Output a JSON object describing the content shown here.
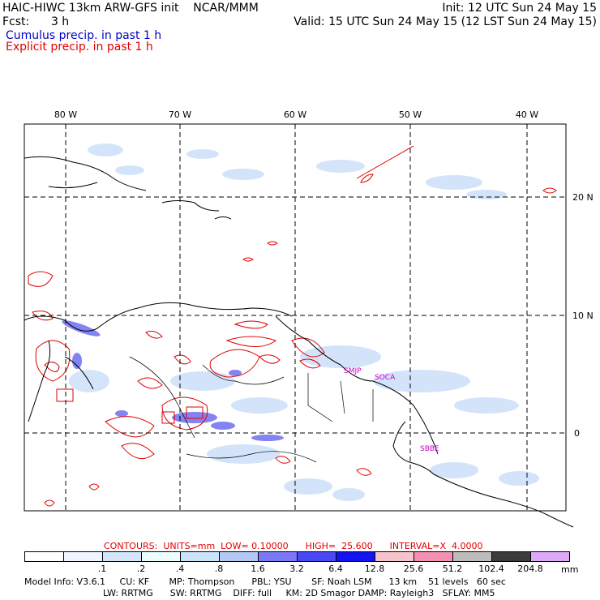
{
  "header": {
    "title_left": "HAIC-HIWC 13km ARW-GFS init    NCAR/MMM",
    "fcst_label": "Fcst:      3 h",
    "init_time": "Init: 12 UTC Sun 24 May 15",
    "valid_time": "Valid: 15 UTC Sun 24 May 15 (12 LST Sun 24 May 15)",
    "legend_cumulus": "Cumulus precip. in past 1 h",
    "legend_explicit": "Explicit precip. in past 1 h"
  },
  "map": {
    "lon_labels": [
      "80 W",
      "70 W",
      "60 W",
      "50 W",
      "40 W"
    ],
    "lat_labels": [
      "20 N",
      "10 N",
      "0"
    ],
    "stations": [
      "SMJP",
      "SOCA",
      "SBBE"
    ],
    "colors": {
      "cumulus": "#3a3aff",
      "explicit": "#e00000",
      "station": "#cc00cc"
    }
  },
  "contours": {
    "label": "CONTOURS:  UNITS=mm  LOW= 0.10000      HIGH=  25.600      INTERVAL=X  4.0000"
  },
  "colorbar": {
    "labels": [
      ".1",
      ".2",
      ".4",
      ".8",
      "1.6",
      "3.2",
      "6.4",
      "12.8",
      "25.6",
      "51.2",
      "102.4",
      "204.8"
    ],
    "units": "mm",
    "colors": [
      "#ffffff",
      "#f0f6ff",
      "#d6e6fa",
      "#eefefe",
      "#cce4fa",
      "#b4c8f5",
      "#7a78f5",
      "#4848f5",
      "#1414f0",
      "#f8c4cc",
      "#f490b4",
      "#bcbcbc",
      "#3c3c3c",
      "#dca8f8"
    ]
  },
  "model_info": {
    "line1": "Model Info: V3.6.1     CU: KF       MP: Thompson      PBL: YSU       SF: Noah LSM      13 km    51 levels   60 sec",
    "line2": "LW: RRTMG      SW: RRTMG    DIFF: full     KM: 2D Smagor DAMP: Rayleigh3   SFLAY: MM5"
  }
}
